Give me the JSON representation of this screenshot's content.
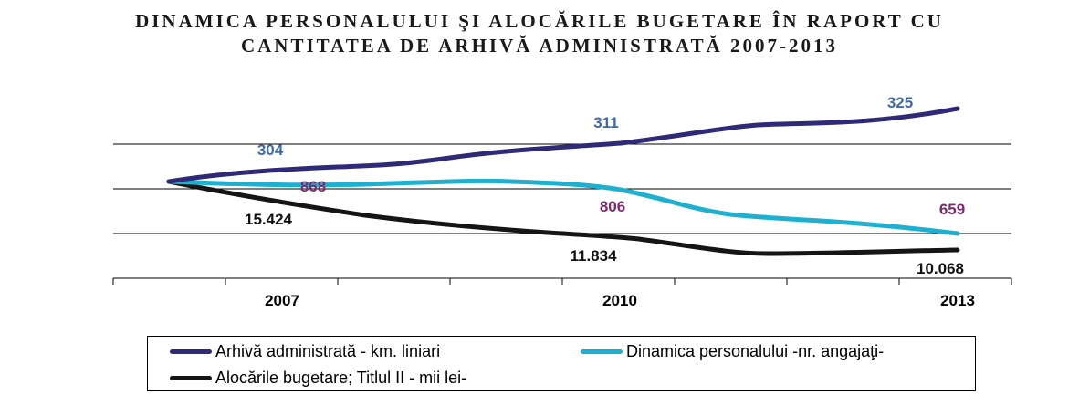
{
  "title_lines": [
    "DINAMICA PERSONALULUI ŞI ALOCĂRILE BUGETARE ÎN RAPORT CU",
    "CANTITATEA DE ARHIVĂ ADMINISTRATĂ 2007-2013"
  ],
  "chart_data": {
    "type": "line",
    "title": "DINAMICA PERSONALULUI ŞI ALOCĂRILE BUGETARE ÎN RAPORT CU CANTITATEA DE ARHIVĂ ADMINISTRATĂ 2007-2013",
    "categories": [
      "2007",
      "2010",
      "2013"
    ],
    "grid": true,
    "legend_position": "bottom",
    "series": [
      {
        "name": "Arhivă administrată - km. liniari",
        "color": "#2e2a78",
        "data_labels": [
          "304",
          "311",
          "325"
        ],
        "label_color": "#3f6aa8"
      },
      {
        "name": "Dinamica personalului -nr. angajaţi-",
        "color": "#1fb0d0",
        "data_labels": [
          "868",
          "806",
          "659"
        ],
        "label_color": "#7b2b6e"
      },
      {
        "name": "Alocările bugetare; Titlul II - mii lei-",
        "color": "#151515",
        "data_labels": [
          "15.424",
          "11.834",
          "10.068"
        ],
        "label_color": "#111111"
      }
    ]
  }
}
